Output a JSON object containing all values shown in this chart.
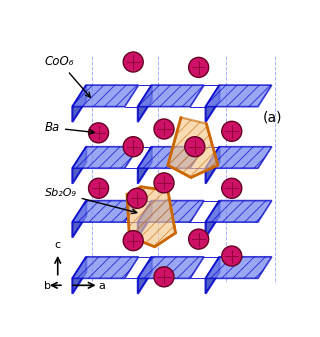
{
  "fig_width": 3.2,
  "fig_height": 3.37,
  "dpi": 100,
  "bg_color": "#ffffff",
  "label_a": "(a)",
  "annotation_CoO6": "CoO₆",
  "annotation_Ba": "Ba",
  "annotation_Sb2O9": "Sb₂O₉",
  "blue_face": "#7788ee",
  "blue_edge": "#0000cc",
  "blue_side": "#3344bb",
  "orange_fill": "#f5c88a",
  "orange_edge": "#cc6600",
  "sphere_color": "#cc1166",
  "sphere_edge": "#660022",
  "dashed_color": "#8899ff",
  "text_color": "#000000",
  "italic_color": "#111111"
}
